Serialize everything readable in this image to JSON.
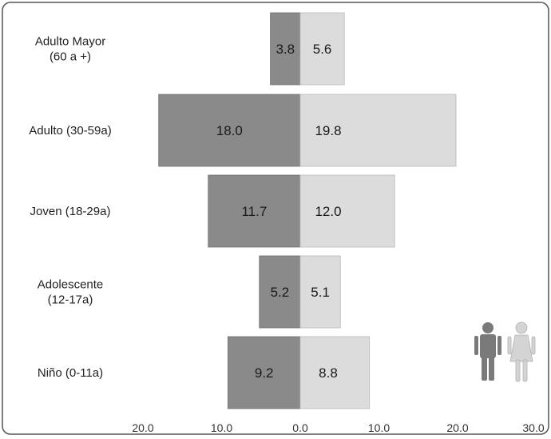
{
  "chart_data": {
    "type": "bar",
    "orientation": "horizontal-diverging",
    "categories": [
      [
        "Adulto Mayor",
        "(60 a +)"
      ],
      [
        "Adulto (30-59a)"
      ],
      [
        "Joven (18-29a)"
      ],
      [
        "Adolescente",
        "(12-17a)"
      ],
      [
        "Niño (0-11a)"
      ]
    ],
    "series": [
      {
        "side": "left",
        "values": [
          3.8,
          18.0,
          11.7,
          5.2,
          9.2
        ],
        "labels": [
          "3.8",
          "18.0",
          "11.7",
          "5.2",
          "9.2"
        ]
      },
      {
        "side": "right",
        "values": [
          5.6,
          19.8,
          12.0,
          5.1,
          8.8
        ],
        "labels": [
          "5.6",
          "19.8",
          "12.0",
          "5.1",
          "8.8"
        ]
      }
    ],
    "x_ticks": [
      "20.0",
      "10.0",
      "0.0",
      "10.0",
      "20.0",
      "30.0"
    ],
    "xlim": [
      -20,
      30
    ],
    "legend": "icons bottom-right",
    "colors": {
      "left_bar": "#8a8a8a",
      "right_bar": "#dcdcdc",
      "man_icon": "#7a7a7a",
      "woman_icon": "#d4d4d4"
    }
  }
}
